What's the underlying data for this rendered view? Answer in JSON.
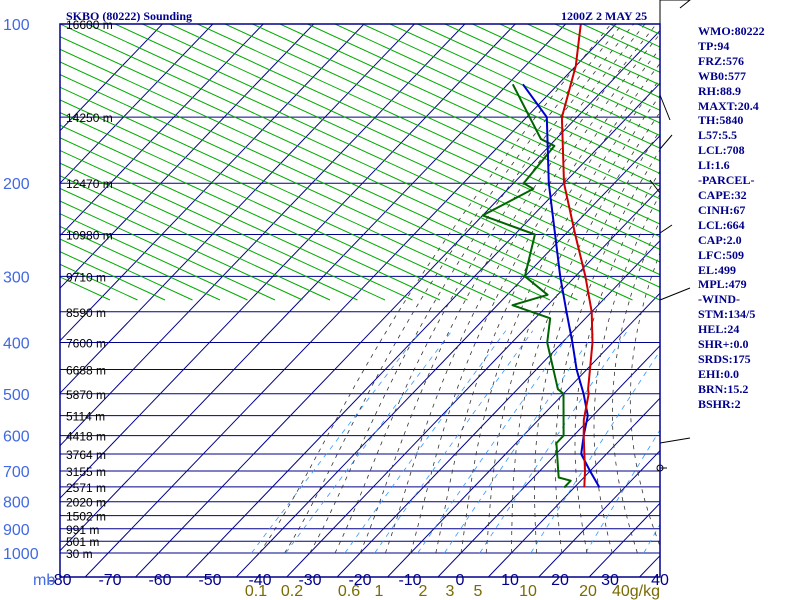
{
  "header": {
    "title": "SKBO (80222) Sounding",
    "time": "1200Z  2 MAY 25"
  },
  "colors": {
    "frame": "#00008b",
    "isobar": "#00008b",
    "isotherm": "#00008b",
    "dry_adiabat": "#00aa00",
    "moist_adiabat": "#333333",
    "mixing_ratio": "#3399ff",
    "temperature": "#cc0000",
    "dewpoint": "#006400",
    "parcel": "#0000cc",
    "wind": "#000000",
    "axis_text_pressure": "#4169e1",
    "axis_text_temp": "#00008b",
    "mixing_text": "#7a6a00"
  },
  "sidebar": {
    "stats": [
      "WMO:80222",
      "TP:94",
      "FRZ:576",
      "WB0:577",
      "RH:88.9",
      "MAXT:20.4",
      "TH:5840",
      "L57:5.5",
      "LCL:708",
      "LI:1.6",
      "-PARCEL-",
      "CAPE:32",
      "CINH:67",
      "LCL:664",
      "CAP:2.0",
      "LFC:509",
      "EL:499",
      "MPL:479",
      "-WIND-",
      "STM:134/5",
      "HEL:24",
      "SHR+:0.0",
      "SRDS:175",
      "EHI:0.0",
      "BRN:15.2",
      "BSHR:2"
    ]
  },
  "chart_data": {
    "type": "skew-t",
    "title": "SKBO (80222) Sounding",
    "x_unit": "mb",
    "mixing_unit": "g/kg",
    "pressure_levels": [
      100,
      200,
      300,
      400,
      500,
      600,
      700,
      800,
      900,
      1000
    ],
    "minor_isobars": [
      150,
      250,
      350,
      450,
      550,
      650,
      750,
      850,
      950
    ],
    "height_labels": [
      {
        "p": 100,
        "text": "16600 m"
      },
      {
        "p": 150,
        "text": "14250 m"
      },
      {
        "p": 200,
        "text": "12470 m"
      },
      {
        "p": 250,
        "text": "10980 m"
      },
      {
        "p": 300,
        "text": "9710 m"
      },
      {
        "p": 350,
        "text": "8590 m"
      },
      {
        "p": 400,
        "text": "7600 m"
      },
      {
        "p": 450,
        "text": "6688 m"
      },
      {
        "p": 500,
        "text": "5870 m"
      },
      {
        "p": 550,
        "text": "5114 m"
      },
      {
        "p": 600,
        "text": "4418 m"
      },
      {
        "p": 650,
        "text": "3764 m"
      },
      {
        "p": 700,
        "text": "3155 m"
      },
      {
        "p": 750,
        "text": "2571 m"
      },
      {
        "p": 800,
        "text": "2020 m"
      },
      {
        "p": 850,
        "text": "1502 m"
      },
      {
        "p": 900,
        "text": "991 m"
      },
      {
        "p": 950,
        "text": "501 m"
      },
      {
        "p": 1000,
        "text": "30 m"
      }
    ],
    "temp_ticks": [
      -80,
      -70,
      -60,
      -50,
      -40,
      -30,
      -20,
      -10,
      0,
      10,
      20,
      30,
      40
    ],
    "mixing_ratios": [
      0.1,
      0.2,
      0.6,
      1.0,
      2.0,
      3.0,
      5.0,
      10.0,
      20.0,
      40
    ],
    "temperature": [
      {
        "p": 752,
        "t": 12
      },
      {
        "p": 700,
        "t": 9
      },
      {
        "p": 600,
        "t": 2
      },
      {
        "p": 560,
        "t": -1
      },
      {
        "p": 500,
        "t": -5
      },
      {
        "p": 490,
        "t": -6
      },
      {
        "p": 400,
        "t": -14
      },
      {
        "p": 350,
        "t": -20
      },
      {
        "p": 300,
        "t": -28
      },
      {
        "p": 250,
        "t": -38
      },
      {
        "p": 200,
        "t": -50
      },
      {
        "p": 150,
        "t": -63
      },
      {
        "p": 120,
        "t": -70
      },
      {
        "p": 100,
        "t": -77
      }
    ],
    "dewpoint": [
      {
        "p": 752,
        "t": 8
      },
      {
        "p": 730,
        "t": 8
      },
      {
        "p": 720,
        "t": 5
      },
      {
        "p": 690,
        "t": 3
      },
      {
        "p": 620,
        "t": -2
      },
      {
        "p": 600,
        "t": -2
      },
      {
        "p": 500,
        "t": -10
      },
      {
        "p": 490,
        "t": -12
      },
      {
        "p": 400,
        "t": -23
      },
      {
        "p": 360,
        "t": -27
      },
      {
        "p": 340,
        "t": -37
      },
      {
        "p": 325,
        "t": -32
      },
      {
        "p": 300,
        "t": -40
      },
      {
        "p": 250,
        "t": -46
      },
      {
        "p": 230,
        "t": -60
      },
      {
        "p": 205,
        "t": -55
      },
      {
        "p": 200,
        "t": -58
      },
      {
        "p": 170,
        "t": -59
      },
      {
        "p": 165,
        "t": -63
      },
      {
        "p": 130,
        "t": -79
      }
    ],
    "parcel": [
      {
        "p": 752,
        "t": 15
      },
      {
        "p": 700,
        "t": 10
      },
      {
        "p": 650,
        "t": 5
      },
      {
        "p": 600,
        "t": 2
      },
      {
        "p": 550,
        "t": -1
      },
      {
        "p": 500,
        "t": -6
      },
      {
        "p": 450,
        "t": -12
      },
      {
        "p": 400,
        "t": -18
      },
      {
        "p": 350,
        "t": -25
      },
      {
        "p": 300,
        "t": -33
      },
      {
        "p": 250,
        "t": -42
      },
      {
        "p": 200,
        "t": -53
      },
      {
        "p": 150,
        "t": -66
      },
      {
        "p": 130,
        "t": -77
      }
    ]
  }
}
